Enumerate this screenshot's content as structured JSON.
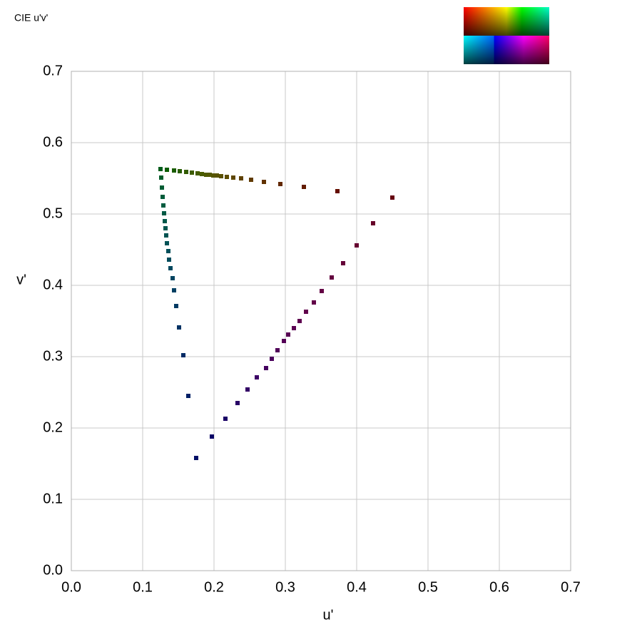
{
  "chart_data": {
    "type": "scatter",
    "title": "CIE u'v'",
    "x_label": "u'",
    "y_label": "v'",
    "xlim": [
      0,
      0.7
    ],
    "ylim": [
      0,
      0.7
    ],
    "xticks": [
      {
        "value": 0,
        "label": "0.0"
      },
      0.1,
      0.2,
      0.3,
      0.4,
      0.5,
      0.6,
      0.7
    ],
    "yticks": [
      {
        "value": 0,
        "label": "0.0"
      },
      0.1,
      0.2,
      0.3,
      0.4,
      0.5,
      0.6,
      0.7
    ],
    "grid": true,
    "series": [
      {
        "x": [
          0.125,
          0.134,
          0.144,
          0.152,
          0.161,
          0.169,
          0.177,
          0.183,
          0.189,
          0.194,
          0.199,
          0.204,
          0.21,
          0.218,
          0.227,
          0.238,
          0.252,
          0.27,
          0.293,
          0.326,
          0.373,
          0.45
        ],
        "y": [
          0.563,
          0.562,
          0.561,
          0.56,
          0.559,
          0.558,
          0.557,
          0.556,
          0.555,
          0.555,
          0.554,
          0.554,
          0.553,
          0.552,
          0.551,
          0.55,
          0.548,
          0.545,
          0.542,
          0.538,
          0.532,
          0.523
        ],
        "colors": [
          "#005c1a",
          "#0b5c00",
          "#1a5c00",
          "#285c00",
          "#335c00",
          "#3d5c00",
          "#445c00",
          "#4a5c00",
          "#4f5a00",
          "#535800",
          "#565600",
          "#585300",
          "#5a5000",
          "#5c4c00",
          "#5e4700",
          "#5f4100",
          "#603a00",
          "#613200",
          "#622800",
          "#631c00",
          "#640e00",
          "#660010"
        ]
      },
      {
        "x": [
          0.126,
          0.127,
          0.128,
          0.129,
          0.13,
          0.131,
          0.132,
          0.133,
          0.134,
          0.136,
          0.137,
          0.139,
          0.142,
          0.144,
          0.147,
          0.151,
          0.157,
          0.164,
          0.175
        ],
        "y": [
          0.551,
          0.537,
          0.524,
          0.512,
          0.501,
          0.49,
          0.48,
          0.47,
          0.459,
          0.448,
          0.436,
          0.424,
          0.41,
          0.393,
          0.371,
          0.341,
          0.302,
          0.245,
          0.158
        ],
        "colors": [
          "#005c2a",
          "#005c33",
          "#005c3a",
          "#005c40",
          "#005a45",
          "#00584a",
          "#00564e",
          "#005452",
          "#005256",
          "#004f5a",
          "#004c5c",
          "#00485e",
          "#004460",
          "#003f62",
          "#003a63",
          "#003264",
          "#002a65",
          "#002066",
          "#000f66"
        ]
      },
      {
        "x": [
          0.197,
          0.216,
          0.233,
          0.247,
          0.26,
          0.273,
          0.281,
          0.289,
          0.298,
          0.304,
          0.312,
          0.32,
          0.329,
          0.34,
          0.351,
          0.365,
          0.381,
          0.4,
          0.423
        ],
        "y": [
          0.188,
          0.213,
          0.235,
          0.254,
          0.271,
          0.284,
          0.297,
          0.309,
          0.322,
          0.331,
          0.34,
          0.35,
          0.363,
          0.376,
          0.392,
          0.411,
          0.431,
          0.456,
          0.487
        ],
        "colors": [
          "#0a0066",
          "#1a0066",
          "#280066",
          "#330066",
          "#3c0066",
          "#44005f",
          "#4a005c",
          "#500058",
          "#550056",
          "#580054",
          "#5b0052",
          "#5e0050",
          "#60004c",
          "#620048",
          "#630044",
          "#64003f",
          "#650038",
          "#660030",
          "#660028"
        ]
      }
    ]
  }
}
